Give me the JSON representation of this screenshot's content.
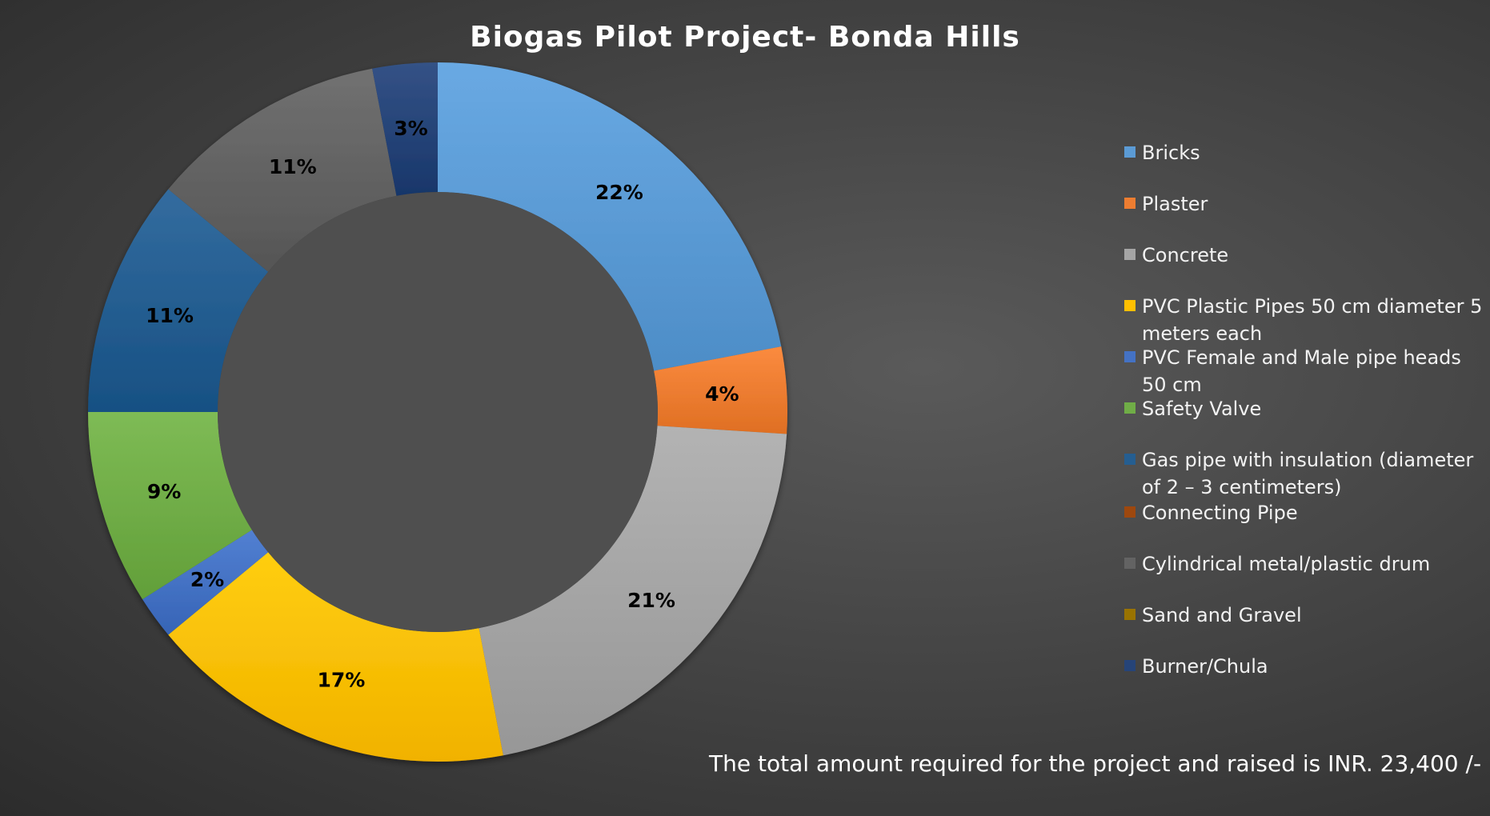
{
  "chart_data": {
    "type": "pie",
    "variant": "donut",
    "title": "Biogas Pilot Project- Bonda Hills",
    "legend_position": "right",
    "slices": [
      {
        "label": "Bricks",
        "value": 22,
        "display": "22%",
        "color": "#5b9bd5"
      },
      {
        "label": "Plaster",
        "value": 4,
        "display": "4%",
        "color": "#ed7d31"
      },
      {
        "label": "Concrete",
        "value": 21,
        "display": "21%",
        "color": "#a5a5a5"
      },
      {
        "label": "PVC Plastic Pipes 50 cm diameter 5 meters each",
        "value": 17,
        "display": "17%",
        "color": "#ffc000"
      },
      {
        "label": "PVC Female and Male pipe heads 50 cm",
        "value": 2,
        "display": "2%",
        "color": "#4472c4"
      },
      {
        "label": "Safety Valve",
        "value": 9,
        "display": "9%",
        "color": "#70ad47"
      },
      {
        "label": "Gas pipe with insulation (diameter of 2 – 3 centimeters)",
        "value": 11,
        "display": "11%",
        "color": "#255e91"
      },
      {
        "label": "Connecting Pipe",
        "value": 0,
        "display": "",
        "color": "#9e480e"
      },
      {
        "label": "Cylindrical metal/plastic drum",
        "value": 11,
        "display": "11%",
        "color": "#636363"
      },
      {
        "label": "Sand and Gravel",
        "value": 0,
        "display": "",
        "color": "#997300"
      },
      {
        "label": "Burner/Chula",
        "value": 3,
        "display": "3%",
        "color": "#264478"
      }
    ]
  },
  "footnote": "The total amount required for the project and raised is INR. 23,400 /-"
}
